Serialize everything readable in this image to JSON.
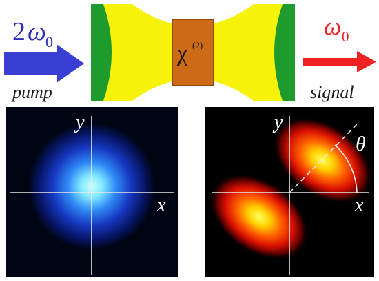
{
  "pump": {
    "freq_coef": "2",
    "freq_symbol": "ω",
    "freq_sub": "0",
    "label": "pump",
    "arrow_color": "#3a3fd4"
  },
  "signal": {
    "freq_symbol": "ω",
    "freq_sub": "0",
    "label": "signal",
    "arrow_color": "#ee2222"
  },
  "cavity": {
    "mirror_color": "#1f9a2c",
    "beam_color": "#f6f20a",
    "crystal_color": "#cc6a18",
    "crystal_symbol": "χ",
    "crystal_order": "(2)"
  },
  "pump_profile": {
    "x_label": "x",
    "y_label": "y",
    "colormap": [
      "#000514",
      "#0b1f8a",
      "#1f5cf0",
      "#5fd0ff",
      "#cfffff"
    ]
  },
  "signal_profile": {
    "x_label": "x",
    "y_label": "y",
    "angle_label": "θ",
    "colormap": [
      "#000000",
      "#5a0000",
      "#e01000",
      "#ff8a00",
      "#ffff50"
    ]
  }
}
